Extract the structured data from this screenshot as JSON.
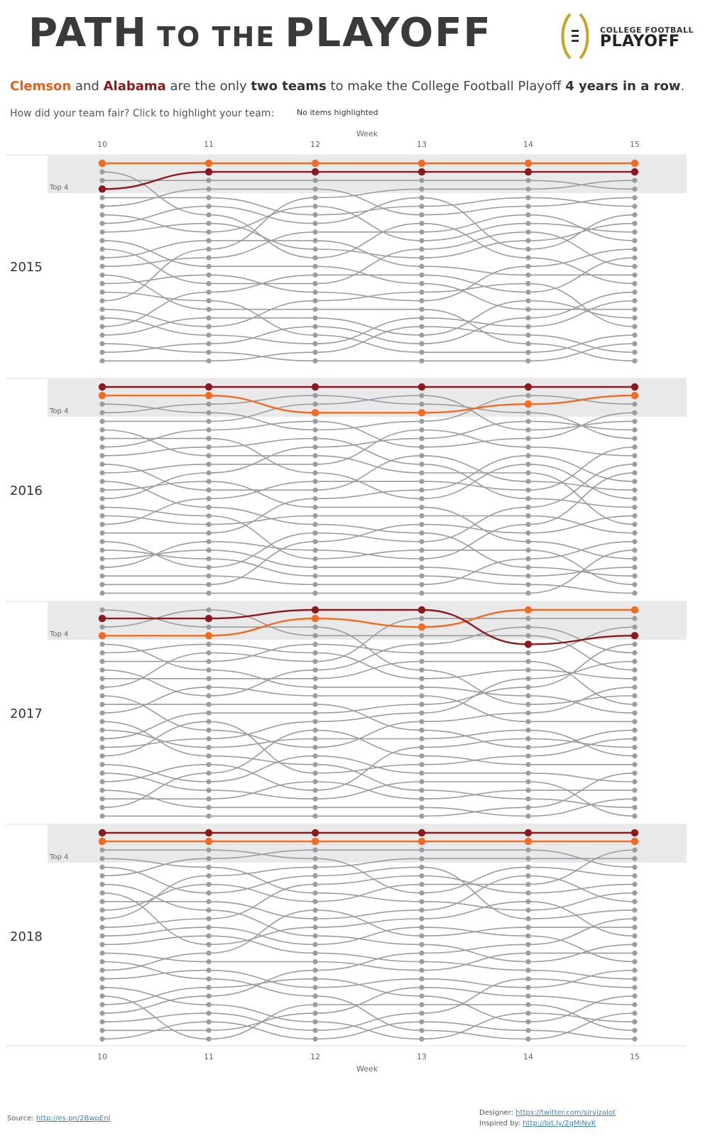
{
  "header": {
    "title_part1": "PATH",
    "title_part2": "TO THE",
    "title_part3": "PLAYOFF",
    "logo_line1": "COLLEGE FOOTBALL",
    "logo_line2": "PLAYOFF"
  },
  "subtitle": {
    "clemson": "Clemson",
    "and": "and",
    "alabama": "Alabama",
    "mid": "are the only",
    "two_teams": "two teams",
    "rest": "to make the College Football Playoff",
    "four_years": "4 years in a row",
    "period": "."
  },
  "prompt": "How did your team fair?  Click to highlight your team:",
  "highlight_status": "No items highlighted",
  "footer": {
    "source_label": "Source: ",
    "source_link": "http://es.pn/2BwpEnl",
    "designer_label": "Designer: ",
    "designer_link": "https://twitter.com/sirvizalot",
    "inspired_label": "Inspired by: ",
    "inspired_link": "http://bit.ly/2qMiNvK"
  },
  "colors": {
    "clemson": "#f26b23",
    "alabama": "#8b1a1f",
    "other": "#999ca1",
    "band": "#e9e9e9"
  },
  "chart_data": {
    "type": "line",
    "title": "PATH TO THE PLAYOFF",
    "xlabel": "Week",
    "weeks": [
      10,
      11,
      12,
      13,
      14,
      15
    ],
    "band_label": "Top 4",
    "teams_per_week": 25,
    "series": [
      {
        "name": "Clemson",
        "values_by_year": {
          "2015": [
            1,
            1,
            1,
            1,
            1,
            1
          ],
          "2016": [
            2,
            2,
            4,
            4,
            3,
            2
          ],
          "2017": [
            4,
            4,
            2,
            3,
            1,
            1
          ],
          "2018": [
            2,
            2,
            2,
            2,
            2,
            2
          ]
        }
      },
      {
        "name": "Alabama",
        "values_by_year": {
          "2015": [
            4,
            2,
            2,
            2,
            2,
            2
          ],
          "2016": [
            1,
            1,
            1,
            1,
            1,
            1
          ],
          "2017": [
            2,
            2,
            1,
            1,
            5,
            4
          ],
          "2018": [
            1,
            1,
            1,
            1,
            1,
            1
          ]
        }
      }
    ],
    "years": [
      {
        "year": "2015",
        "week_counts": [
          24,
          24,
          24,
          24,
          24,
          24
        ]
      },
      {
        "year": "2016",
        "week_counts": [
          25,
          25,
          25,
          25,
          25,
          25
        ]
      },
      {
        "year": "2017",
        "week_counts": [
          25,
          25,
          25,
          25,
          25,
          25
        ]
      },
      {
        "year": "2018",
        "week_counts": [
          25,
          25,
          25,
          25,
          25,
          25
        ]
      }
    ]
  }
}
